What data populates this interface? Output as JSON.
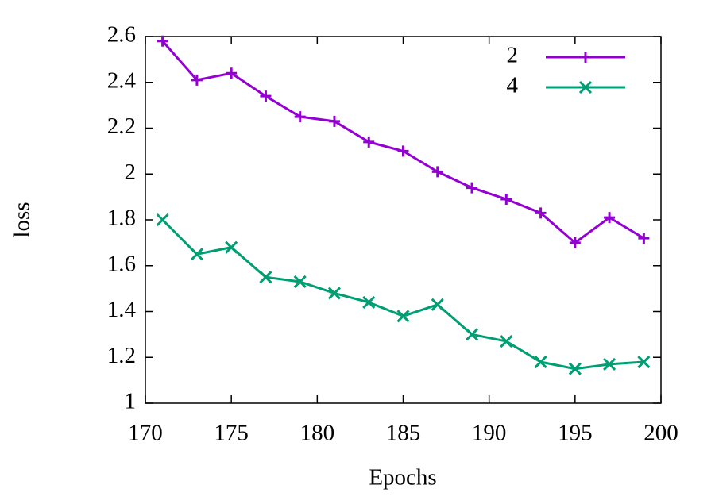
{
  "chart_data": {
    "type": "line",
    "x_label": "Epochs",
    "y_label": "loss",
    "x": [
      171,
      173,
      175,
      177,
      179,
      181,
      183,
      185,
      187,
      189,
      191,
      193,
      195,
      197,
      199
    ],
    "series": [
      {
        "name": "2",
        "color": "#9400d3",
        "marker": "plus",
        "values": [
          2.58,
          2.41,
          2.44,
          2.34,
          2.25,
          2.23,
          2.14,
          2.1,
          2.01,
          1.94,
          1.89,
          1.83,
          1.7,
          1.81,
          1.72
        ]
      },
      {
        "name": "4",
        "color": "#009e73",
        "marker": "cross",
        "values": [
          1.8,
          1.65,
          1.68,
          1.55,
          1.53,
          1.48,
          1.44,
          1.38,
          1.43,
          1.3,
          1.27,
          1.18,
          1.15,
          1.17,
          1.18
        ]
      }
    ],
    "xlim": [
      170,
      200
    ],
    "xticks": [
      170,
      175,
      180,
      185,
      190,
      195,
      200
    ],
    "ylim": [
      1,
      2.6
    ],
    "yticks": [
      1,
      1.2,
      1.4,
      1.6,
      1.8,
      2,
      2.2,
      2.4,
      2.6
    ],
    "grid": false,
    "legend": "top-right"
  }
}
